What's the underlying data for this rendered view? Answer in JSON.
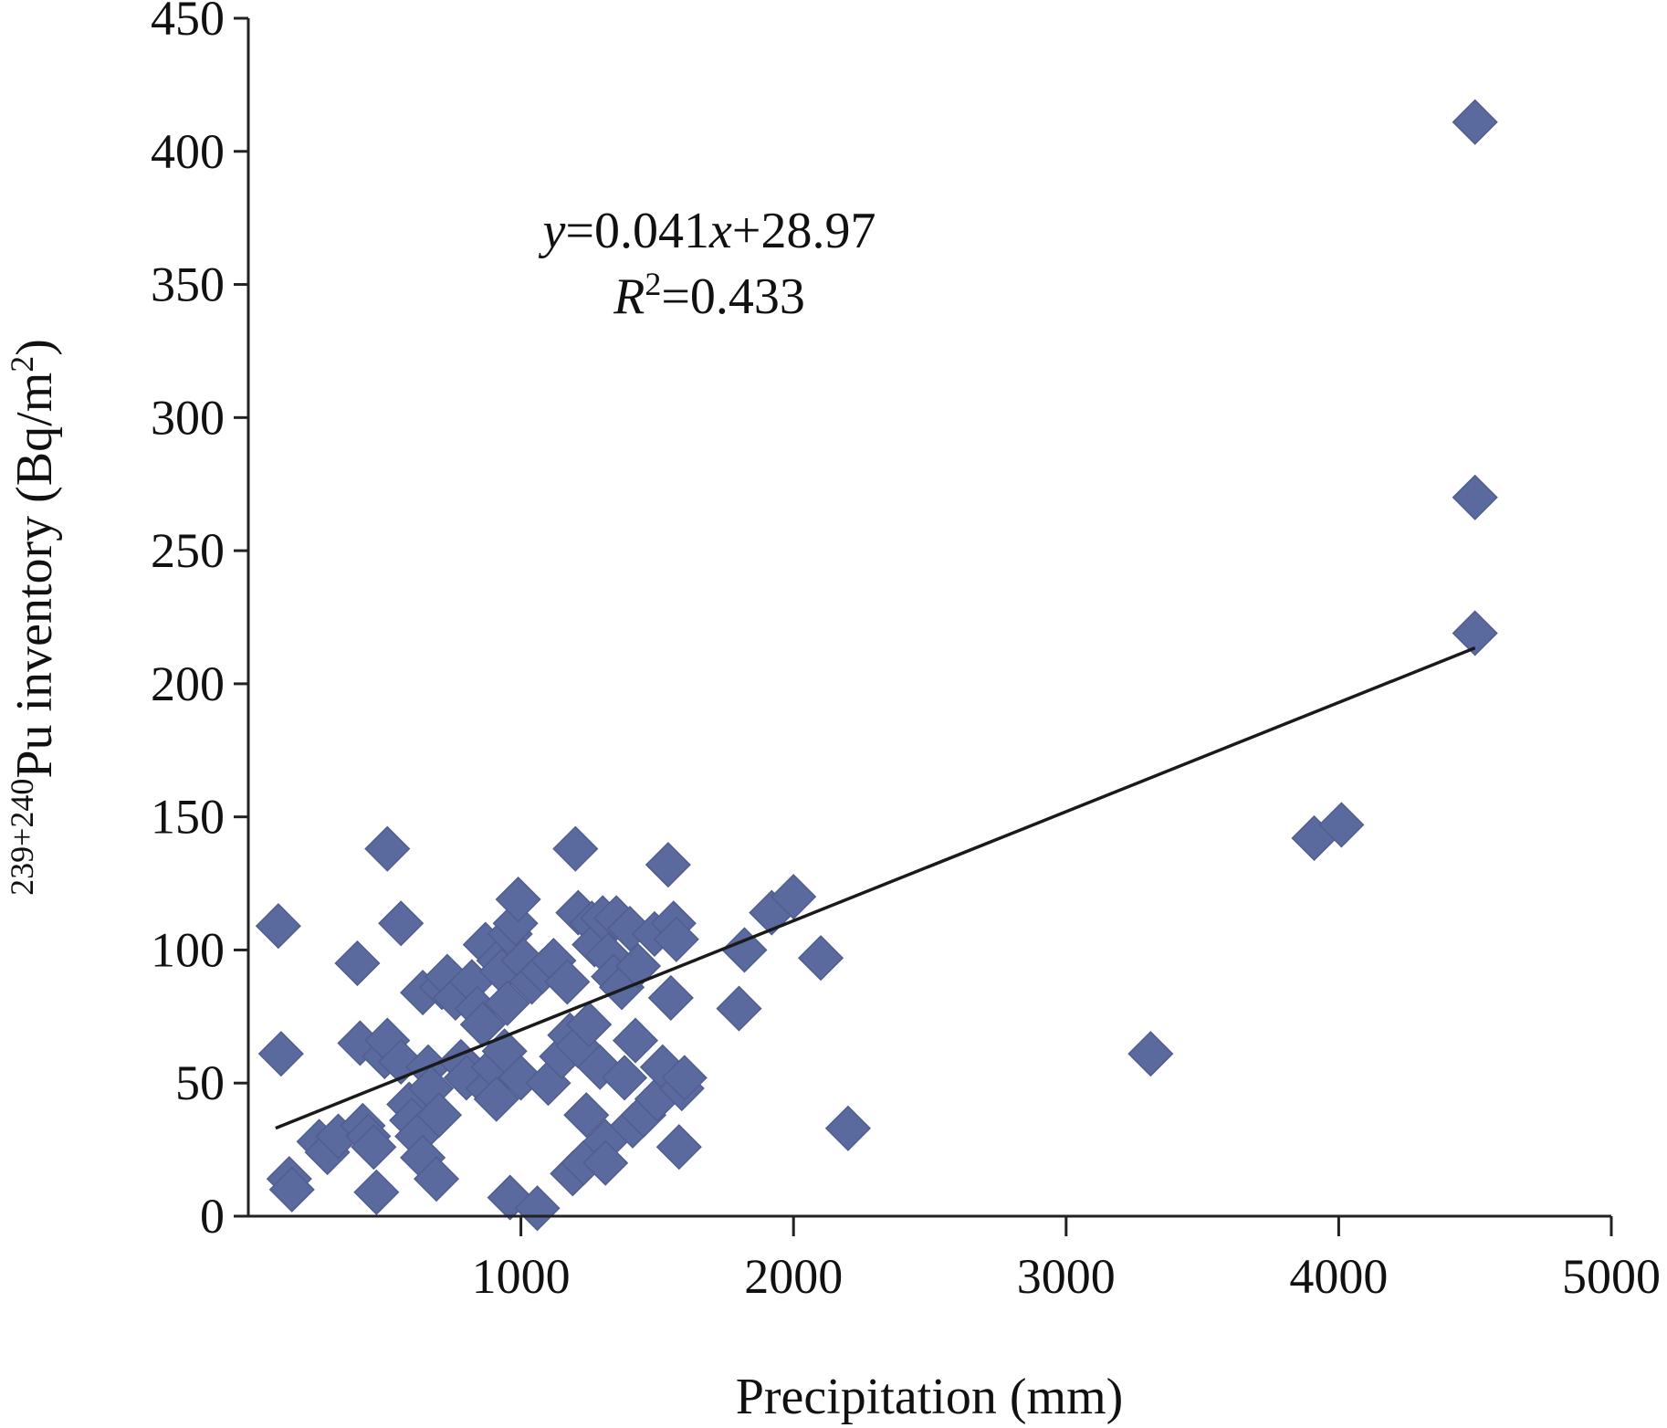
{
  "chart_data": {
    "type": "scatter",
    "xlabel": "Precipitation (mm)",
    "ylabel": {
      "prefix": "239+240",
      "main": "Pu inventory (Bq/m",
      "sup": "2",
      "suffix": ")"
    },
    "xlim": [
      0,
      5000
    ],
    "ylim": [
      0,
      450
    ],
    "xticks": [
      1000,
      2000,
      3000,
      4000,
      5000
    ],
    "yticks": [
      0,
      50,
      100,
      150,
      200,
      250,
      300,
      350,
      400,
      450
    ],
    "grid": false,
    "marker": "diamond",
    "marker_color": "#5b6a9e",
    "annotation": {
      "equation": {
        "y": "y",
        "eq1": "=0.041",
        "x": "x",
        "eq2": "+28.97"
      },
      "r2": {
        "r": "R",
        "sup": "2",
        "eq": "=0.433"
      }
    },
    "trendline": {
      "slope": 0.041,
      "intercept": 28.97,
      "x_range": [
        100,
        4500
      ]
    },
    "points": [
      {
        "x": 110,
        "y": 109
      },
      {
        "x": 120,
        "y": 61
      },
      {
        "x": 150,
        "y": 14
      },
      {
        "x": 160,
        "y": 10
      },
      {
        "x": 260,
        "y": 28
      },
      {
        "x": 290,
        "y": 24
      },
      {
        "x": 330,
        "y": 30
      },
      {
        "x": 400,
        "y": 95
      },
      {
        "x": 410,
        "y": 65
      },
      {
        "x": 420,
        "y": 34
      },
      {
        "x": 440,
        "y": 30
      },
      {
        "x": 460,
        "y": 26
      },
      {
        "x": 470,
        "y": 9
      },
      {
        "x": 500,
        "y": 60
      },
      {
        "x": 510,
        "y": 66
      },
      {
        "x": 510,
        "y": 138
      },
      {
        "x": 560,
        "y": 110
      },
      {
        "x": 560,
        "y": 58
      },
      {
        "x": 590,
        "y": 42
      },
      {
        "x": 600,
        "y": 36
      },
      {
        "x": 620,
        "y": 30
      },
      {
        "x": 640,
        "y": 22
      },
      {
        "x": 640,
        "y": 84
      },
      {
        "x": 660,
        "y": 56
      },
      {
        "x": 670,
        "y": 48
      },
      {
        "x": 690,
        "y": 14
      },
      {
        "x": 700,
        "y": 38
      },
      {
        "x": 710,
        "y": 86
      },
      {
        "x": 730,
        "y": 90
      },
      {
        "x": 760,
        "y": 82
      },
      {
        "x": 780,
        "y": 58
      },
      {
        "x": 800,
        "y": 52
      },
      {
        "x": 820,
        "y": 88
      },
      {
        "x": 840,
        "y": 78
      },
      {
        "x": 860,
        "y": 72
      },
      {
        "x": 870,
        "y": 102
      },
      {
        "x": 880,
        "y": 48
      },
      {
        "x": 900,
        "y": 56
      },
      {
        "x": 910,
        "y": 44
      },
      {
        "x": 920,
        "y": 96
      },
      {
        "x": 930,
        "y": 92
      },
      {
        "x": 940,
        "y": 62
      },
      {
        "x": 950,
        "y": 80
      },
      {
        "x": 960,
        "y": 106
      },
      {
        "x": 960,
        "y": 7
      },
      {
        "x": 980,
        "y": 110
      },
      {
        "x": 990,
        "y": 119
      },
      {
        "x": 1000,
        "y": 52
      },
      {
        "x": 1010,
        "y": 96
      },
      {
        "x": 1040,
        "y": 88
      },
      {
        "x": 1060,
        "y": 3
      },
      {
        "x": 1080,
        "y": 92
      },
      {
        "x": 1100,
        "y": 50
      },
      {
        "x": 1120,
        "y": 96
      },
      {
        "x": 1150,
        "y": 60
      },
      {
        "x": 1170,
        "y": 88
      },
      {
        "x": 1180,
        "y": 68
      },
      {
        "x": 1190,
        "y": 16
      },
      {
        "x": 1200,
        "y": 138
      },
      {
        "x": 1210,
        "y": 114
      },
      {
        "x": 1210,
        "y": 64
      },
      {
        "x": 1230,
        "y": 20
      },
      {
        "x": 1240,
        "y": 38
      },
      {
        "x": 1250,
        "y": 72
      },
      {
        "x": 1260,
        "y": 110
      },
      {
        "x": 1270,
        "y": 102
      },
      {
        "x": 1290,
        "y": 56
      },
      {
        "x": 1300,
        "y": 112
      },
      {
        "x": 1310,
        "y": 28
      },
      {
        "x": 1310,
        "y": 20
      },
      {
        "x": 1320,
        "y": 98
      },
      {
        "x": 1340,
        "y": 90
      },
      {
        "x": 1350,
        "y": 112
      },
      {
        "x": 1370,
        "y": 86
      },
      {
        "x": 1380,
        "y": 52
      },
      {
        "x": 1400,
        "y": 108
      },
      {
        "x": 1410,
        "y": 34
      },
      {
        "x": 1420,
        "y": 66
      },
      {
        "x": 1430,
        "y": 94
      },
      {
        "x": 1450,
        "y": 38
      },
      {
        "x": 1490,
        "y": 106
      },
      {
        "x": 1500,
        "y": 44
      },
      {
        "x": 1520,
        "y": 56
      },
      {
        "x": 1540,
        "y": 132
      },
      {
        "x": 1550,
        "y": 82
      },
      {
        "x": 1560,
        "y": 110
      },
      {
        "x": 1570,
        "y": 104
      },
      {
        "x": 1580,
        "y": 26
      },
      {
        "x": 1590,
        "y": 48
      },
      {
        "x": 1600,
        "y": 52
      },
      {
        "x": 1800,
        "y": 78
      },
      {
        "x": 1820,
        "y": 100
      },
      {
        "x": 1920,
        "y": 114
      },
      {
        "x": 2000,
        "y": 120
      },
      {
        "x": 2100,
        "y": 97
      },
      {
        "x": 2200,
        "y": 33
      },
      {
        "x": 3310,
        "y": 61
      },
      {
        "x": 3910,
        "y": 142
      },
      {
        "x": 4010,
        "y": 147
      },
      {
        "x": 4500,
        "y": 219
      },
      {
        "x": 4500,
        "y": 270
      },
      {
        "x": 4500,
        "y": 411
      }
    ]
  }
}
